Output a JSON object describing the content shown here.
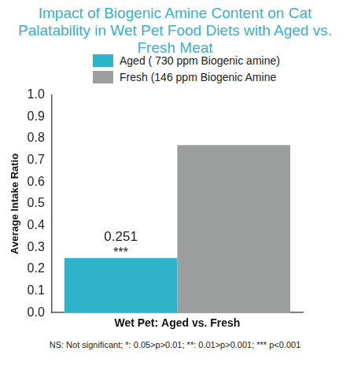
{
  "chart_data": {
    "type": "bar",
    "title": "Impact of Biogenic Amine Content on Cat Palatability in Wet Pet Food Diets with Aged vs. Fresh Meat",
    "y_label": "Average Intake Ratio",
    "categories": [
      "Wet Pet: Aged vs. Fresh"
    ],
    "series": [
      {
        "name": "Aged ( 730 ppm Biogenic amine)",
        "color": "#2fb3c9",
        "values": [
          0.251
        ],
        "data_labels": true,
        "annotation": "***"
      },
      {
        "name": "Fresh (146 ppm Biogenic Amine",
        "color": "#9c9e9e",
        "values": [
          0.77
        ]
      }
    ],
    "ylim": [
      0,
      1
    ],
    "yticks": [
      {
        "value": 0,
        "label": "0.0"
      },
      {
        "value": 0.1,
        "label": "0.1"
      },
      {
        "value": 0.2,
        "label": "0.2"
      },
      {
        "value": 0.3,
        "label": "0.3"
      },
      {
        "value": 0.4,
        "label": "0.4"
      },
      {
        "value": 0.5,
        "label": "0.5"
      },
      {
        "value": 0.6,
        "label": "0.6"
      },
      {
        "value": 0.7,
        "label": "0.7"
      },
      {
        "value": 0.8,
        "label": "0.8"
      },
      {
        "value": 0.9,
        "label": "0.9"
      },
      {
        "value": 1,
        "label": "1.0"
      }
    ],
    "grid": false,
    "legend": "top",
    "note": "NS: Not significant; *: 0.05>p>0.01; **: 0.01>p>0.001; *** p<0.001"
  }
}
